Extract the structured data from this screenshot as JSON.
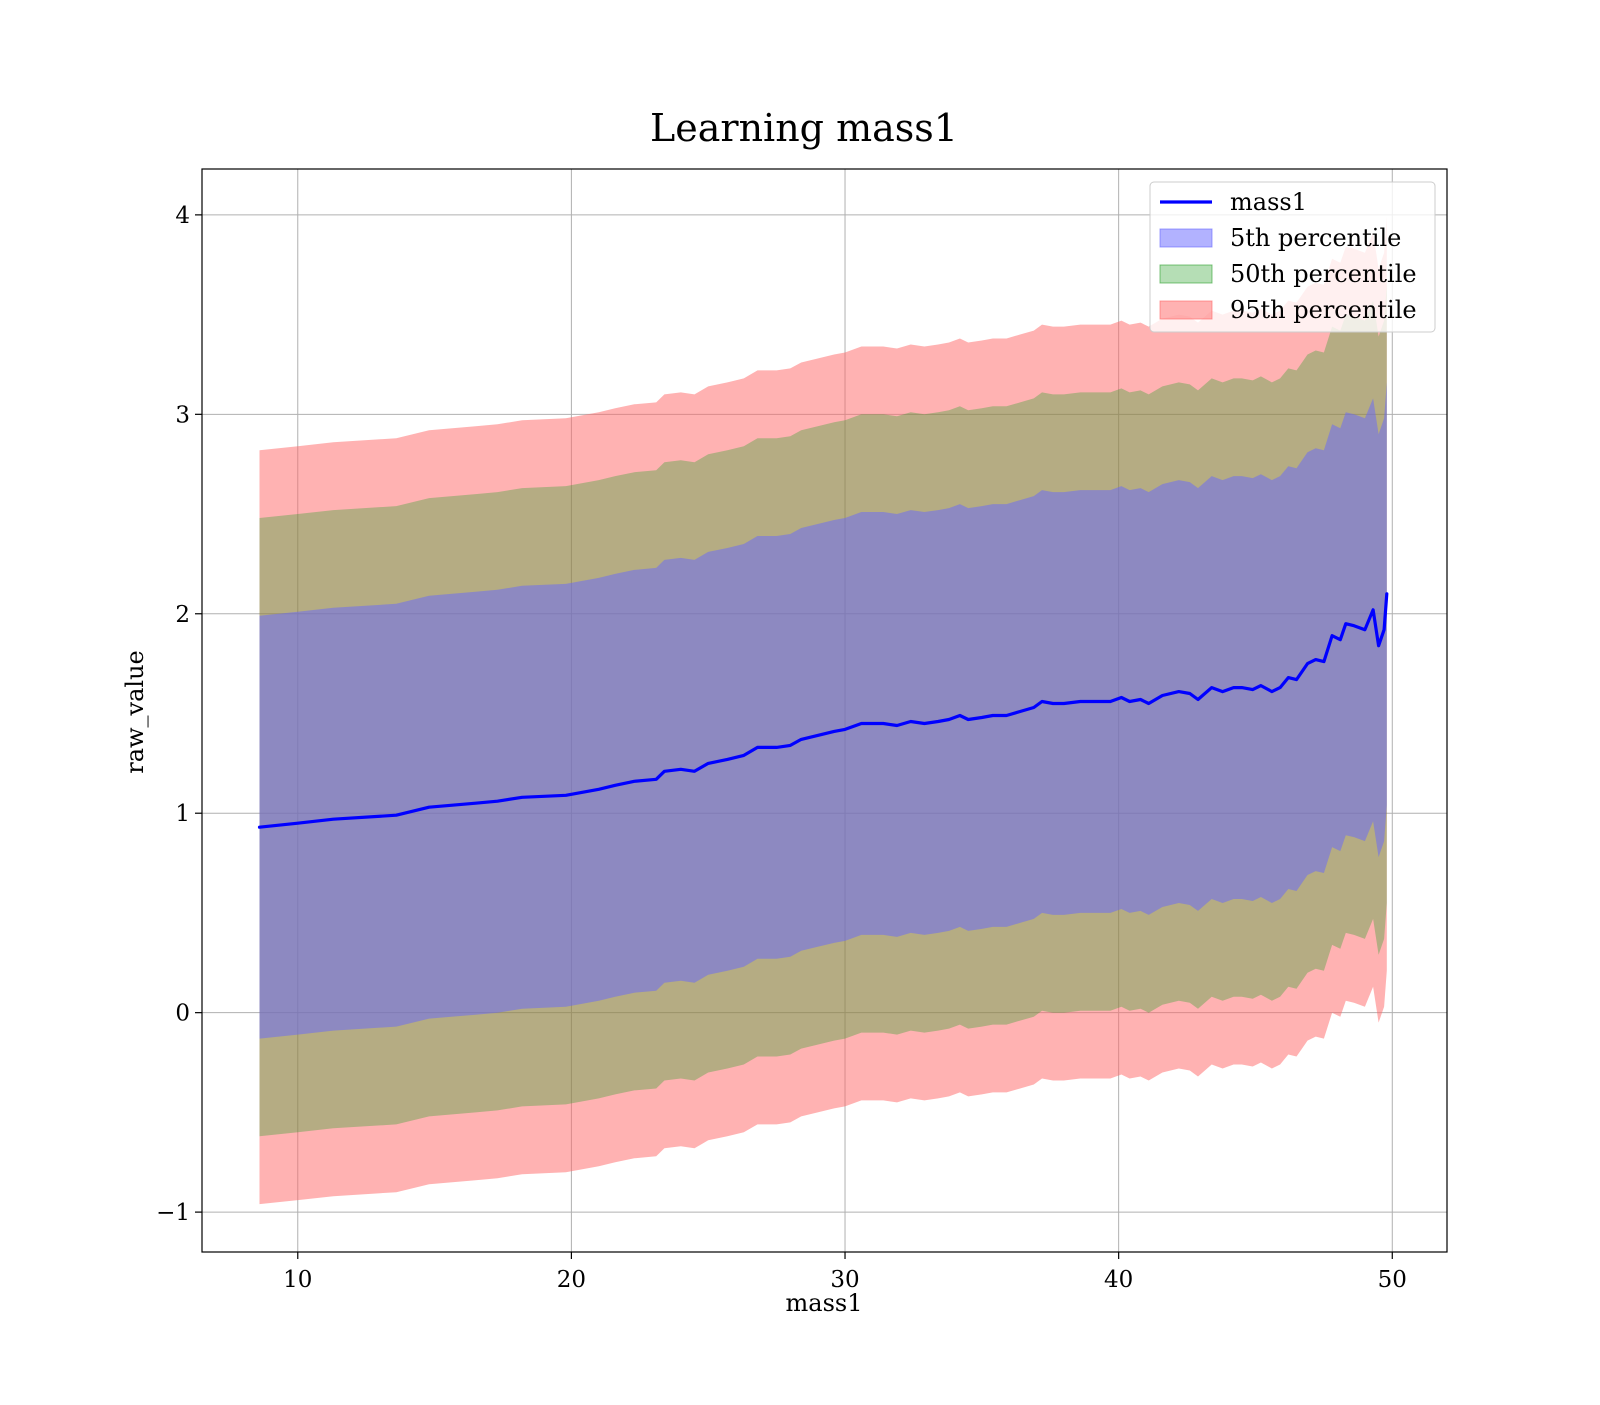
{
  "chart_data": {
    "type": "area",
    "title": "Learning mass1",
    "xlabel": "mass1",
    "ylabel": "raw_value",
    "xlim": [
      6.5,
      52
    ],
    "ylim": [
      -1.2,
      4.23
    ],
    "xticks": [
      10,
      20,
      30,
      40,
      50
    ],
    "yticks": [
      -1,
      0,
      1,
      2,
      3,
      4
    ],
    "xtick_labels": [
      "10",
      "20",
      "30",
      "40",
      "50"
    ],
    "ytick_labels": [
      "−1",
      "0",
      "1",
      "2",
      "3",
      "4"
    ],
    "grid": true,
    "legend_position": "top-right",
    "x": [
      8.6,
      10.0,
      11.3,
      13.6,
      14.8,
      16.5,
      17.3,
      18.2,
      19.8,
      21.0,
      21.6,
      22.3,
      23.1,
      23.4,
      24.0,
      24.5,
      25.0,
      25.7,
      26.3,
      26.8,
      27.5,
      28.0,
      28.4,
      29.0,
      29.6,
      30.0,
      30.6,
      31.4,
      31.9,
      32.4,
      32.9,
      33.4,
      33.8,
      34.2,
      34.5,
      35.0,
      35.4,
      35.9,
      36.4,
      36.9,
      37.2,
      37.6,
      38.0,
      38.6,
      39.2,
      39.7,
      40.1,
      40.4,
      40.8,
      41.1,
      41.6,
      42.2,
      42.6,
      42.9,
      43.4,
      43.8,
      44.2,
      44.5,
      44.9,
      45.2,
      45.6,
      45.9,
      46.2,
      46.5,
      46.7,
      46.9,
      47.2,
      47.5,
      47.8,
      48.1,
      48.3,
      48.6,
      49.0,
      49.3,
      49.5,
      49.7,
      49.8
    ],
    "series": [
      {
        "name": "mass1",
        "color": "#0000ff",
        "values": [
          0.93,
          0.95,
          0.97,
          0.99,
          1.03,
          1.05,
          1.06,
          1.08,
          1.09,
          1.12,
          1.14,
          1.16,
          1.17,
          1.21,
          1.22,
          1.21,
          1.25,
          1.27,
          1.29,
          1.33,
          1.33,
          1.34,
          1.37,
          1.39,
          1.41,
          1.42,
          1.45,
          1.45,
          1.44,
          1.46,
          1.45,
          1.46,
          1.47,
          1.49,
          1.47,
          1.48,
          1.49,
          1.49,
          1.51,
          1.53,
          1.56,
          1.55,
          1.55,
          1.56,
          1.56,
          1.56,
          1.58,
          1.56,
          1.57,
          1.55,
          1.59,
          1.61,
          1.6,
          1.57,
          1.63,
          1.61,
          1.63,
          1.63,
          1.62,
          1.64,
          1.61,
          1.63,
          1.68,
          1.67,
          1.71,
          1.75,
          1.77,
          1.76,
          1.89,
          1.87,
          1.95,
          1.94,
          1.92,
          2.02,
          1.84,
          1.92,
          2.1
        ]
      }
    ],
    "bands": [
      {
        "name": "95th percentile",
        "color": "#ff6666",
        "opacity": 0.5,
        "lower": [
          -0.96,
          -0.94,
          -0.92,
          -0.9,
          -0.86,
          -0.84,
          -0.83,
          -0.81,
          -0.8,
          -0.77,
          -0.75,
          -0.73,
          -0.72,
          -0.68,
          -0.67,
          -0.68,
          -0.64,
          -0.62,
          -0.6,
          -0.56,
          -0.56,
          -0.55,
          -0.52,
          -0.5,
          -0.48,
          -0.47,
          -0.44,
          -0.44,
          -0.45,
          -0.43,
          -0.44,
          -0.43,
          -0.42,
          -0.4,
          -0.42,
          -0.41,
          -0.4,
          -0.4,
          -0.38,
          -0.36,
          -0.33,
          -0.34,
          -0.34,
          -0.33,
          -0.33,
          -0.33,
          -0.31,
          -0.33,
          -0.32,
          -0.34,
          -0.3,
          -0.28,
          -0.29,
          -0.32,
          -0.26,
          -0.28,
          -0.26,
          -0.26,
          -0.27,
          -0.25,
          -0.28,
          -0.26,
          -0.21,
          -0.22,
          -0.18,
          -0.14,
          -0.12,
          -0.13,
          0.0,
          -0.02,
          0.06,
          0.05,
          0.03,
          0.13,
          -0.05,
          0.03,
          0.21
        ],
        "upper": [
          2.82,
          2.84,
          2.86,
          2.88,
          2.92,
          2.94,
          2.95,
          2.97,
          2.98,
          3.01,
          3.03,
          3.05,
          3.06,
          3.1,
          3.11,
          3.1,
          3.14,
          3.16,
          3.18,
          3.22,
          3.22,
          3.23,
          3.26,
          3.28,
          3.3,
          3.31,
          3.34,
          3.34,
          3.33,
          3.35,
          3.34,
          3.35,
          3.36,
          3.38,
          3.36,
          3.37,
          3.38,
          3.38,
          3.4,
          3.42,
          3.45,
          3.44,
          3.44,
          3.45,
          3.45,
          3.45,
          3.47,
          3.45,
          3.46,
          3.44,
          3.48,
          3.5,
          3.49,
          3.46,
          3.52,
          3.5,
          3.52,
          3.52,
          3.51,
          3.53,
          3.5,
          3.52,
          3.57,
          3.56,
          3.6,
          3.64,
          3.66,
          3.65,
          3.78,
          3.76,
          3.84,
          3.83,
          3.81,
          3.91,
          3.73,
          3.81,
          3.99
        ]
      },
      {
        "name": "50th percentile",
        "color": "#2ca02c",
        "opacity": 0.35,
        "lower": [
          -0.62,
          -0.6,
          -0.58,
          -0.56,
          -0.52,
          -0.5,
          -0.49,
          -0.47,
          -0.46,
          -0.43,
          -0.41,
          -0.39,
          -0.38,
          -0.34,
          -0.33,
          -0.34,
          -0.3,
          -0.28,
          -0.26,
          -0.22,
          -0.22,
          -0.21,
          -0.18,
          -0.16,
          -0.14,
          -0.13,
          -0.1,
          -0.1,
          -0.11,
          -0.09,
          -0.1,
          -0.09,
          -0.08,
          -0.06,
          -0.08,
          -0.07,
          -0.06,
          -0.06,
          -0.04,
          -0.02,
          0.01,
          0.0,
          0.0,
          0.01,
          0.01,
          0.01,
          0.03,
          0.01,
          0.02,
          0.0,
          0.04,
          0.06,
          0.05,
          0.02,
          0.08,
          0.06,
          0.08,
          0.08,
          0.07,
          0.09,
          0.06,
          0.08,
          0.13,
          0.12,
          0.16,
          0.2,
          0.22,
          0.21,
          0.34,
          0.32,
          0.4,
          0.39,
          0.37,
          0.47,
          0.29,
          0.37,
          0.55
        ],
        "upper": [
          2.48,
          2.5,
          2.52,
          2.54,
          2.58,
          2.6,
          2.61,
          2.63,
          2.64,
          2.67,
          2.69,
          2.71,
          2.72,
          2.76,
          2.77,
          2.76,
          2.8,
          2.82,
          2.84,
          2.88,
          2.88,
          2.89,
          2.92,
          2.94,
          2.96,
          2.97,
          3.0,
          3.0,
          2.99,
          3.01,
          3.0,
          3.01,
          3.02,
          3.04,
          3.02,
          3.03,
          3.04,
          3.04,
          3.06,
          3.08,
          3.11,
          3.1,
          3.1,
          3.11,
          3.11,
          3.11,
          3.13,
          3.11,
          3.12,
          3.1,
          3.14,
          3.16,
          3.15,
          3.12,
          3.18,
          3.16,
          3.18,
          3.18,
          3.17,
          3.19,
          3.16,
          3.18,
          3.23,
          3.22,
          3.26,
          3.3,
          3.32,
          3.31,
          3.44,
          3.42,
          3.5,
          3.49,
          3.47,
          3.57,
          3.39,
          3.47,
          3.65
        ]
      },
      {
        "name": "5th percentile",
        "color": "#6666ff",
        "opacity": 0.5,
        "lower": [
          -0.13,
          -0.11,
          -0.09,
          -0.07,
          -0.03,
          -0.01,
          0.0,
          0.02,
          0.03,
          0.06,
          0.08,
          0.1,
          0.11,
          0.15,
          0.16,
          0.15,
          0.19,
          0.21,
          0.23,
          0.27,
          0.27,
          0.28,
          0.31,
          0.33,
          0.35,
          0.36,
          0.39,
          0.39,
          0.38,
          0.4,
          0.39,
          0.4,
          0.41,
          0.43,
          0.41,
          0.42,
          0.43,
          0.43,
          0.45,
          0.47,
          0.5,
          0.49,
          0.49,
          0.5,
          0.5,
          0.5,
          0.52,
          0.5,
          0.51,
          0.49,
          0.53,
          0.55,
          0.54,
          0.51,
          0.57,
          0.55,
          0.57,
          0.57,
          0.56,
          0.58,
          0.55,
          0.57,
          0.62,
          0.61,
          0.65,
          0.69,
          0.71,
          0.7,
          0.83,
          0.81,
          0.89,
          0.88,
          0.86,
          0.96,
          0.78,
          0.86,
          1.04
        ],
        "upper": [
          1.99,
          2.01,
          2.03,
          2.05,
          2.09,
          2.11,
          2.12,
          2.14,
          2.15,
          2.18,
          2.2,
          2.22,
          2.23,
          2.27,
          2.28,
          2.27,
          2.31,
          2.33,
          2.35,
          2.39,
          2.39,
          2.4,
          2.43,
          2.45,
          2.47,
          2.48,
          2.51,
          2.51,
          2.5,
          2.52,
          2.51,
          2.52,
          2.53,
          2.55,
          2.53,
          2.54,
          2.55,
          2.55,
          2.57,
          2.59,
          2.62,
          2.61,
          2.61,
          2.62,
          2.62,
          2.62,
          2.64,
          2.62,
          2.63,
          2.61,
          2.65,
          2.67,
          2.66,
          2.63,
          2.69,
          2.67,
          2.69,
          2.69,
          2.68,
          2.7,
          2.67,
          2.69,
          2.74,
          2.73,
          2.77,
          2.81,
          2.83,
          2.82,
          2.95,
          2.93,
          3.01,
          3.0,
          2.98,
          3.08,
          2.9,
          2.98,
          3.16
        ]
      }
    ],
    "legend": [
      {
        "label": "mass1",
        "kind": "line",
        "color": "#0000ff"
      },
      {
        "label": "5th percentile",
        "kind": "patch",
        "color": "#6666ff",
        "opacity": 0.5
      },
      {
        "label": "50th percentile",
        "kind": "patch",
        "color": "#2ca02c",
        "opacity": 0.35
      },
      {
        "label": "95th percentile",
        "kind": "patch",
        "color": "#ff6666",
        "opacity": 0.5
      }
    ]
  }
}
